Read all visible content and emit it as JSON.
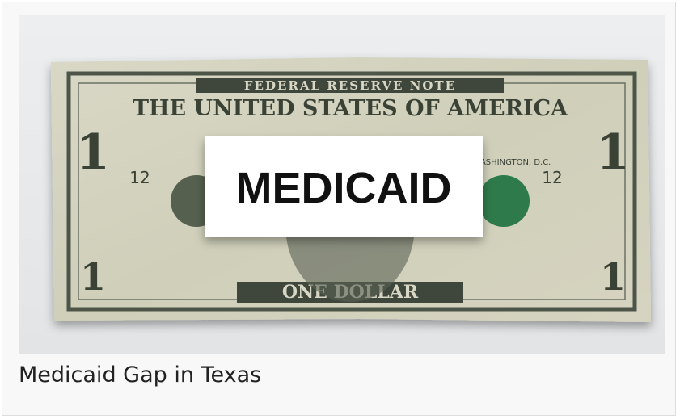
{
  "image": {
    "label": "MEDICAID",
    "bill": {
      "top_banner": "FEDERAL RESERVE NOTE",
      "heading": "THE UNITED STATES OF AMERICA",
      "bottom_banner": "ONE DOLLAR",
      "denomination": "1",
      "district": "12",
      "city": "WASHINGTON, D.C."
    }
  },
  "caption": "Medicaid Gap in Texas"
}
